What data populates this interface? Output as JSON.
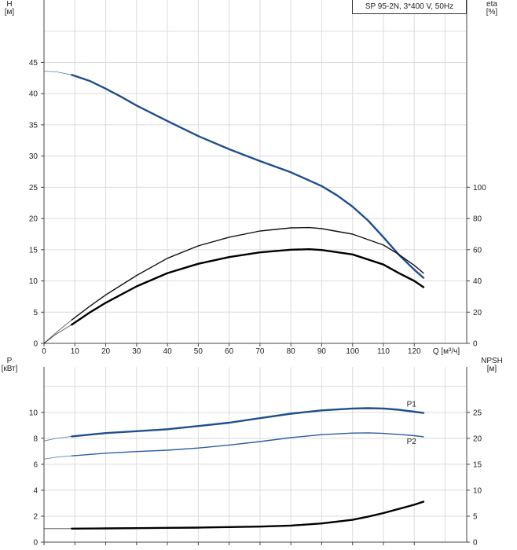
{
  "legend": {
    "model": "SP 95-2N, 3*400 V, 50Hz"
  },
  "chart_data": [
    {
      "type": "line",
      "panel": "top",
      "xlabel": "Q [м³/ч]",
      "x_ticks": [
        0,
        10,
        20,
        30,
        40,
        50,
        60,
        70,
        80,
        90,
        100,
        110,
        120
      ],
      "xlim": [
        0,
        137
      ],
      "y_left": {
        "label_line1": "H",
        "label_line2": "[м]",
        "lim": [
          0,
          55
        ],
        "ticks": [
          0,
          5,
          10,
          15,
          20,
          25,
          30,
          35,
          40,
          45
        ]
      },
      "y_right": {
        "label_line1": "eta",
        "label_line2": "[%]",
        "lim": [
          0,
          220
        ],
        "ticks": [
          0,
          20,
          40,
          60,
          80,
          100
        ]
      },
      "grid": true,
      "series": [
        {
          "key": "H",
          "axis": "left",
          "color": "#1f4e8c",
          "x_ext": [
            0,
            4,
            9
          ],
          "y_ext": [
            43.6,
            43.5,
            43.0
          ],
          "x": [
            9,
            15,
            20,
            25,
            30,
            40,
            50,
            60,
            70,
            80,
            90,
            95,
            100,
            105,
            110,
            115,
            120,
            123
          ],
          "y": [
            43.0,
            42.0,
            40.8,
            39.5,
            38.1,
            35.6,
            33.2,
            31.1,
            29.2,
            27.4,
            25.2,
            23.7,
            21.9,
            19.7,
            17.0,
            14.2,
            11.8,
            10.5
          ]
        },
        {
          "key": "eta_pump",
          "axis": "right",
          "color": "#111111",
          "x_ext": [
            0,
            4,
            9
          ],
          "y_ext": [
            0,
            7,
            15
          ],
          "x": [
            9,
            15,
            20,
            30,
            40,
            50,
            60,
            70,
            80,
            86,
            90,
            100,
            110,
            115,
            120,
            123
          ],
          "y": [
            15,
            24,
            31,
            43.5,
            54.5,
            62.5,
            68,
            72,
            74,
            74.2,
            73.5,
            70,
            63,
            57,
            50,
            45
          ]
        },
        {
          "key": "eta_total",
          "axis": "right",
          "color": "#000000",
          "x_ext": [
            0,
            4,
            9
          ],
          "y_ext": [
            0,
            6,
            12
          ],
          "x": [
            9,
            15,
            20,
            30,
            40,
            50,
            60,
            70,
            80,
            86,
            90,
            100,
            110,
            115,
            120,
            123
          ],
          "y": [
            12,
            20,
            26,
            36.5,
            45,
            51,
            55.3,
            58.3,
            60,
            60.3,
            59.8,
            57,
            50.5,
            45,
            40,
            36
          ]
        }
      ]
    },
    {
      "type": "line",
      "panel": "bottom",
      "xlim": [
        0,
        137
      ],
      "y_left": {
        "label_line1": "P",
        "label_line2": "[кВт]",
        "lim": [
          0,
          13.5
        ],
        "ticks": [
          0,
          2,
          4,
          6,
          8,
          10
        ]
      },
      "y_right": {
        "label_line1": "NPSH",
        "label_line2": "[м]",
        "lim": [
          0,
          33.75
        ],
        "ticks": [
          0,
          5,
          10,
          15,
          20,
          25
        ]
      },
      "grid": true,
      "series": [
        {
          "key": "P1",
          "name": "P1",
          "axis": "left",
          "color": "#1f4e8c",
          "x_ext": [
            0,
            4,
            9
          ],
          "y_ext": [
            7.8,
            8.0,
            8.15
          ],
          "x": [
            9,
            20,
            30,
            40,
            50,
            60,
            70,
            80,
            90,
            100,
            105,
            110,
            115,
            120,
            123
          ],
          "y": [
            8.15,
            8.4,
            8.55,
            8.7,
            8.95,
            9.2,
            9.55,
            9.9,
            10.15,
            10.3,
            10.32,
            10.3,
            10.2,
            10.05,
            9.95
          ]
        },
        {
          "key": "P2",
          "name": "P2",
          "axis": "left",
          "color": "#2d5d9f",
          "x_ext": [
            0,
            4,
            9
          ],
          "y_ext": [
            6.4,
            6.55,
            6.65
          ],
          "x": [
            9,
            20,
            30,
            40,
            50,
            60,
            70,
            80,
            90,
            100,
            105,
            110,
            115,
            120,
            123
          ],
          "y": [
            6.65,
            6.85,
            6.98,
            7.08,
            7.25,
            7.48,
            7.75,
            8.05,
            8.28,
            8.4,
            8.42,
            8.38,
            8.3,
            8.2,
            8.12
          ]
        },
        {
          "key": "NPSH",
          "axis": "right",
          "color": "#000000",
          "x_ext": [
            0,
            4,
            9
          ],
          "y_ext": [
            2.6,
            2.6,
            2.6
          ],
          "x": [
            9,
            20,
            30,
            40,
            50,
            60,
            70,
            80,
            90,
            100,
            105,
            110,
            115,
            120,
            123
          ],
          "y": [
            2.6,
            2.65,
            2.7,
            2.75,
            2.8,
            2.9,
            3.0,
            3.2,
            3.6,
            4.3,
            4.9,
            5.6,
            6.4,
            7.2,
            7.8
          ]
        }
      ]
    }
  ]
}
